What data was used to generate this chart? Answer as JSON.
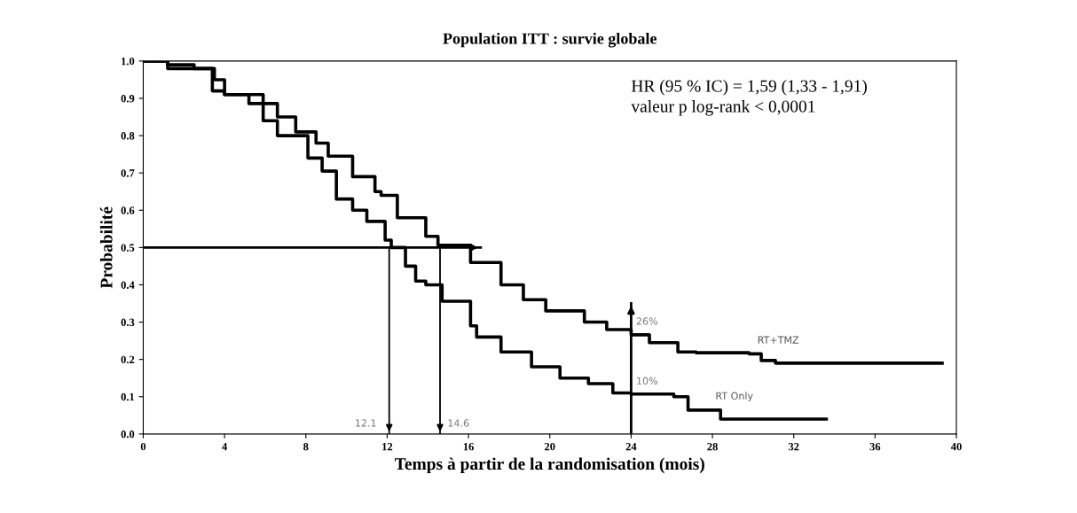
{
  "chart_data": {
    "type": "step",
    "title": "Population ITT : survie globale",
    "xlabel": "Temps à partir de la randomisation (mois)",
    "ylabel": "Probabilité",
    "series": [
      {
        "name": "RT+TMZ",
        "color": "#000000",
        "x": [
          0,
          1.2,
          2.5,
          3.5,
          4.0,
          5.2,
          6.6,
          7.5,
          8.5,
          9.1,
          10.3,
          11.4,
          11.7,
          12.5,
          13.9,
          14.5,
          16.1,
          17.6,
          18.7,
          19.8,
          21.7,
          22.8,
          24.0,
          24.9,
          26.3,
          27.2,
          29.8,
          30.4,
          31.1,
          39.3
        ],
        "values": [
          1.0,
          0.99,
          0.98,
          0.95,
          0.91,
          0.886,
          0.85,
          0.81,
          0.78,
          0.745,
          0.69,
          0.65,
          0.64,
          0.58,
          0.53,
          0.506,
          0.46,
          0.4,
          0.36,
          0.33,
          0.3,
          0.28,
          0.266,
          0.245,
          0.22,
          0.218,
          0.215,
          0.197,
          0.19,
          0.19
        ]
      },
      {
        "name": "RT Only",
        "color": "#000000",
        "x": [
          0,
          1.2,
          3.4,
          4.0,
          5.9,
          6.6,
          8.1,
          8.8,
          9.5,
          10.3,
          11.0,
          11.9,
          12.2,
          12.9,
          13.4,
          13.9,
          14.7,
          16.1,
          16.4,
          17.6,
          19.1,
          20.5,
          21.9,
          23.1,
          24.0,
          26.1,
          26.8,
          28.4,
          33.6
        ],
        "values": [
          1.0,
          0.98,
          0.92,
          0.91,
          0.84,
          0.8,
          0.74,
          0.705,
          0.63,
          0.6,
          0.57,
          0.52,
          0.5,
          0.45,
          0.41,
          0.4,
          0.356,
          0.29,
          0.26,
          0.22,
          0.18,
          0.15,
          0.135,
          0.11,
          0.107,
          0.1,
          0.064,
          0.04,
          0.04
        ]
      }
    ],
    "xlim": [
      0,
      40
    ],
    "xticks": [
      0,
      4,
      8,
      12,
      16,
      20,
      24,
      28,
      32,
      36,
      40
    ],
    "ylim": [
      0,
      1.0
    ],
    "yticks": [
      {
        "value": 0,
        "label": "0.0"
      },
      0.1,
      0.2,
      0.3,
      0.4,
      0.5,
      0.6,
      0.7,
      0.8,
      0.9,
      {
        "value": 1.0,
        "label": "1.0"
      }
    ],
    "ref_lines": [
      {
        "axis": "y",
        "value": 0.5,
        "color": "#000000"
      },
      {
        "axis": "x",
        "value": 12.1,
        "label": "12.1",
        "color": "#000000"
      },
      {
        "axis": "x",
        "value": 14.6,
        "label": "14.6",
        "color": "#000000"
      },
      {
        "axis": "x",
        "value": 24,
        "color": "#000000"
      }
    ],
    "annotations": [
      "HR (95 % IC) = 1,59 (1,33 - 1,91)\nvaleur p log-rank < 0,0001",
      {
        "text": "26%",
        "x": 24,
        "y": 0.26
      },
      {
        "text": "10%",
        "x": 24,
        "y": 0.1
      }
    ],
    "grid": false,
    "legend": false,
    "line_style": "solid",
    "marker": "none"
  }
}
